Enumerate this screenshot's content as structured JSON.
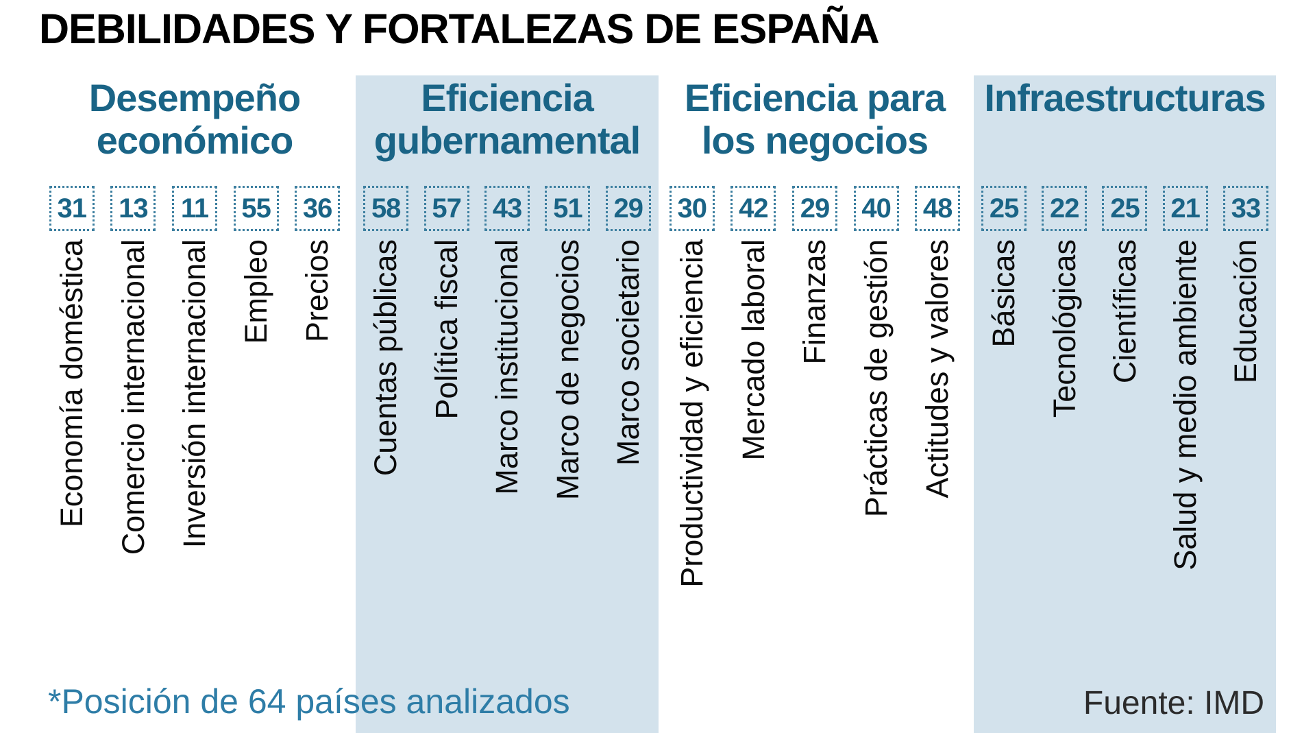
{
  "title": "DEBILIDADES Y FORTALEZAS DE ESPAÑA",
  "footnote": "*Posición de 64 países analizados",
  "source_label": "Fuente: IMD",
  "colors": {
    "accent_teal": "#1a6486",
    "band_light_blue": "#d3e2ec",
    "dotted_border_teal": "#3d7fa0",
    "footnote_teal": "#2e7da7",
    "label_black": "#0b0b0b",
    "source_dark_gray": "#2b2b2b"
  },
  "chart_data": {
    "type": "table",
    "title": "DEBILIDADES Y FORTALEZAS DE ESPAÑA",
    "note": "*Posición de 64 países analizados",
    "source": "Fuente: IMD",
    "value_range": [
      1,
      64
    ],
    "groups": [
      {
        "name": "Desempeño económico",
        "name_lines": [
          "Desempeño",
          "económico"
        ],
        "shaded": false,
        "items": [
          {
            "label": "Economía doméstica",
            "value": 31
          },
          {
            "label": "Comercio internacional",
            "value": 13
          },
          {
            "label": "Inversión internacional",
            "value": 11
          },
          {
            "label": "Empleo",
            "value": 55
          },
          {
            "label": "Precios",
            "value": 36
          }
        ]
      },
      {
        "name": "Eficiencia gubernamental",
        "name_lines": [
          "Eficiencia",
          "gubernamental"
        ],
        "shaded": true,
        "items": [
          {
            "label": "Cuentas públicas",
            "value": 58
          },
          {
            "label": "Política fiscal",
            "value": 57
          },
          {
            "label": "Marco institucional",
            "value": 43
          },
          {
            "label": "Marco de negocios",
            "value": 51
          },
          {
            "label": "Marco societario",
            "value": 29
          }
        ]
      },
      {
        "name": "Eficiencia para los negocios",
        "name_lines": [
          "Eficiencia para",
          "los negocios"
        ],
        "shaded": false,
        "items": [
          {
            "label": "Productividad y eficiencia",
            "value": 30
          },
          {
            "label": "Mercado laboral",
            "value": 42
          },
          {
            "label": "Finanzas",
            "value": 29
          },
          {
            "label": "Prácticas de gestión",
            "value": 40
          },
          {
            "label": "Actitudes y valores",
            "value": 48
          }
        ]
      },
      {
        "name": "Infraestructuras",
        "name_lines": [
          "Infraestructuras"
        ],
        "shaded": true,
        "items": [
          {
            "label": "Básicas",
            "value": 25
          },
          {
            "label": "Tecnológicas",
            "value": 22
          },
          {
            "label": "Científicas",
            "value": 25
          },
          {
            "label": "Salud y medio ambiente",
            "value": 21
          },
          {
            "label": "Educación",
            "value": 33
          }
        ]
      }
    ]
  }
}
